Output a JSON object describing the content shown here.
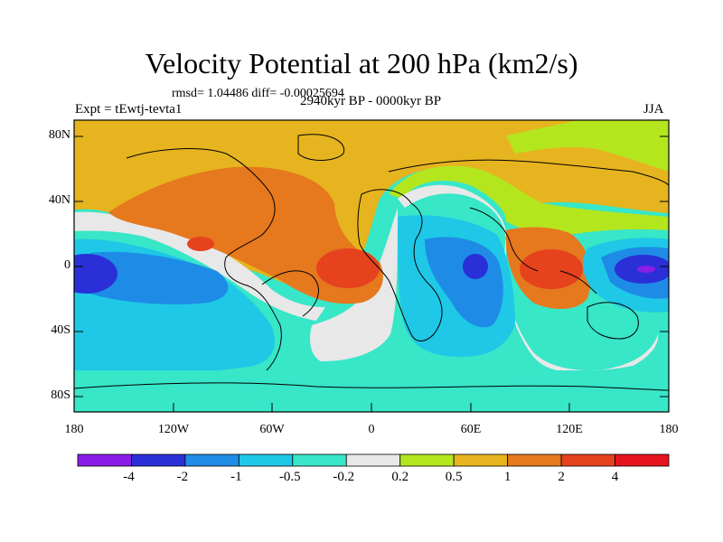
{
  "title": "Velocity Potential at 200 hPa (km2/s)",
  "stats_line": "rmsd= 1.04486 diff= -0.00025694",
  "left_label": "Expt = tEwtj-tevta1",
  "center_label": "2940kyr BP - 0000kyr BP",
  "right_label": "JJA",
  "y_axis_labels": [
    "80N",
    "40N",
    "0",
    "40S",
    "80S"
  ],
  "x_axis_labels": [
    "180",
    "120W",
    "60W",
    "0",
    "60E",
    "120E",
    "180"
  ],
  "colorbar": {
    "labels": [
      "-4",
      "-2",
      "-1",
      "-0.5",
      "-0.2",
      "0.2",
      "0.5",
      "1",
      "2",
      "4"
    ],
    "colors": [
      "#8a1ee6",
      "#2a2fd8",
      "#1e8ce6",
      "#1ec8e6",
      "#38e6c8",
      "#e8e8e8",
      "#b4e61e",
      "#e6b41e",
      "#e6781e",
      "#e6421e",
      "#e6141e"
    ]
  }
}
